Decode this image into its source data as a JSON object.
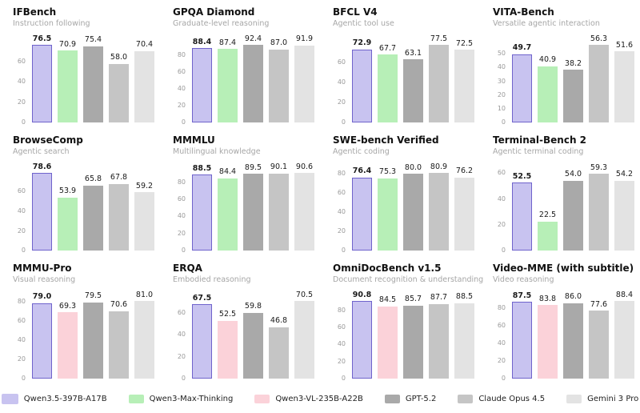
{
  "legend": {
    "items": [
      {
        "label": "Qwen3.5-397B-A17B",
        "fill": "#c8c3f0",
        "border": "#6f63cc",
        "emphasis": true
      },
      {
        "label": "Qwen3-Max-Thinking",
        "fill": "#b7efb7",
        "border": null,
        "emphasis": false
      },
      {
        "label": "Qwen3-VL-235B-A22B",
        "fill": "#fbd2d9",
        "border": null,
        "emphasis": false
      },
      {
        "label": "GPT-5.2",
        "fill": "#a9a9a9",
        "border": null,
        "emphasis": false
      },
      {
        "label": "Claude Opus 4.5",
        "fill": "#c5c5c5",
        "border": null,
        "emphasis": false
      },
      {
        "label": "Gemini 3 Pro",
        "fill": "#e3e3e3",
        "border": null,
        "emphasis": false
      }
    ]
  },
  "chart_data": [
    {
      "type": "bar",
      "title": "IFBench",
      "subtitle": "Instruction following",
      "yticks": [
        0,
        20,
        40,
        60
      ],
      "grid": false,
      "value_labels": true,
      "series": [
        {
          "name": "Qwen3.5-397B-A17B",
          "value": 76.5
        },
        {
          "name": "Qwen3-Max-Thinking",
          "value": 70.9
        },
        {
          "name": "GPT-5.2",
          "value": 75.4
        },
        {
          "name": "Claude Opus 4.5",
          "value": 58.0
        },
        {
          "name": "Gemini 3 Pro",
          "value": 70.4
        }
      ]
    },
    {
      "type": "bar",
      "title": "GPQA Diamond",
      "subtitle": "Graduate-level reasoning",
      "yticks": [
        0,
        20,
        40,
        60,
        80
      ],
      "grid": false,
      "value_labels": true,
      "series": [
        {
          "name": "Qwen3.5-397B-A17B",
          "value": 88.4
        },
        {
          "name": "Qwen3-Max-Thinking",
          "value": 87.4
        },
        {
          "name": "GPT-5.2",
          "value": 92.4
        },
        {
          "name": "Claude Opus 4.5",
          "value": 87.0
        },
        {
          "name": "Gemini 3 Pro",
          "value": 91.9
        }
      ]
    },
    {
      "type": "bar",
      "title": "BFCL V4",
      "subtitle": "Agentic tool use",
      "yticks": [
        0,
        20,
        40,
        60
      ],
      "grid": false,
      "value_labels": true,
      "series": [
        {
          "name": "Qwen3.5-397B-A17B",
          "value": 72.9
        },
        {
          "name": "Qwen3-Max-Thinking",
          "value": 67.7
        },
        {
          "name": "GPT-5.2",
          "value": 63.1
        },
        {
          "name": "Claude Opus 4.5",
          "value": 77.5
        },
        {
          "name": "Gemini 3 Pro",
          "value": 72.5
        }
      ]
    },
    {
      "type": "bar",
      "title": "VITA-Bench",
      "subtitle": "Versatile agentic interaction",
      "yticks": [
        0,
        10,
        20,
        30,
        40,
        50
      ],
      "grid": false,
      "value_labels": true,
      "series": [
        {
          "name": "Qwen3.5-397B-A17B",
          "value": 49.7
        },
        {
          "name": "Qwen3-Max-Thinking",
          "value": 40.9
        },
        {
          "name": "GPT-5.2",
          "value": 38.2
        },
        {
          "name": "Claude Opus 4.5",
          "value": 56.3
        },
        {
          "name": "Gemini 3 Pro",
          "value": 51.6
        }
      ]
    },
    {
      "type": "bar",
      "title": "BrowseComp",
      "subtitle": "Agentic search",
      "yticks": [
        0,
        20,
        40,
        60
      ],
      "grid": false,
      "value_labels": true,
      "series": [
        {
          "name": "Qwen3.5-397B-A17B",
          "value": 78.6
        },
        {
          "name": "Qwen3-Max-Thinking",
          "value": 53.9
        },
        {
          "name": "GPT-5.2",
          "value": 65.8
        },
        {
          "name": "Claude Opus 4.5",
          "value": 67.8
        },
        {
          "name": "Gemini 3 Pro",
          "value": 59.2
        }
      ]
    },
    {
      "type": "bar",
      "title": "MMMLU",
      "subtitle": "Multilingual knowledge",
      "yticks": [
        0,
        20,
        40,
        60,
        80
      ],
      "grid": false,
      "value_labels": true,
      "series": [
        {
          "name": "Qwen3.5-397B-A17B",
          "value": 88.5
        },
        {
          "name": "Qwen3-Max-Thinking",
          "value": 84.4
        },
        {
          "name": "GPT-5.2",
          "value": 89.5
        },
        {
          "name": "Claude Opus 4.5",
          "value": 90.1
        },
        {
          "name": "Gemini 3 Pro",
          "value": 90.6
        }
      ]
    },
    {
      "type": "bar",
      "title": "SWE-bench Verified",
      "subtitle": "Agentic coding",
      "yticks": [
        0,
        20,
        40,
        60,
        80
      ],
      "grid": false,
      "value_labels": true,
      "series": [
        {
          "name": "Qwen3.5-397B-A17B",
          "value": 76.4
        },
        {
          "name": "Qwen3-Max-Thinking",
          "value": 75.3
        },
        {
          "name": "GPT-5.2",
          "value": 80.0
        },
        {
          "name": "Claude Opus 4.5",
          "value": 80.9
        },
        {
          "name": "Gemini 3 Pro",
          "value": 76.2
        }
      ]
    },
    {
      "type": "bar",
      "title": "Terminal-Bench 2",
      "subtitle": "Agentic terminal coding",
      "yticks": [
        0,
        20,
        40,
        60
      ],
      "grid": false,
      "value_labels": true,
      "series": [
        {
          "name": "Qwen3.5-397B-A17B",
          "value": 52.5
        },
        {
          "name": "Qwen3-Max-Thinking",
          "value": 22.5
        },
        {
          "name": "GPT-5.2",
          "value": 54.0
        },
        {
          "name": "Claude Opus 4.5",
          "value": 59.3
        },
        {
          "name": "Gemini 3 Pro",
          "value": 54.2
        }
      ]
    },
    {
      "type": "bar",
      "title": "MMMU-Pro",
      "subtitle": "Visual reasoning",
      "yticks": [
        0,
        20,
        40,
        60,
        80
      ],
      "grid": false,
      "value_labels": true,
      "series": [
        {
          "name": "Qwen3.5-397B-A17B",
          "value": 79.0
        },
        {
          "name": "Qwen3-VL-235B-A22B",
          "value": 69.3
        },
        {
          "name": "GPT-5.2",
          "value": 79.5
        },
        {
          "name": "Claude Opus 4.5",
          "value": 70.6
        },
        {
          "name": "Gemini 3 Pro",
          "value": 81.0
        }
      ]
    },
    {
      "type": "bar",
      "title": "ERQA",
      "subtitle": "Embodied reasoning",
      "yticks": [
        0,
        20,
        40,
        60
      ],
      "grid": false,
      "value_labels": true,
      "series": [
        {
          "name": "Qwen3.5-397B-A17B",
          "value": 67.5
        },
        {
          "name": "Qwen3-VL-235B-A22B",
          "value": 52.5
        },
        {
          "name": "GPT-5.2",
          "value": 59.8
        },
        {
          "name": "Claude Opus 4.5",
          "value": 46.8
        },
        {
          "name": "Gemini 3 Pro",
          "value": 70.5
        }
      ]
    },
    {
      "type": "bar",
      "title": "OmniDocBench v1.5",
      "subtitle": "Document recognition & understanding",
      "yticks": [
        0,
        20,
        40,
        60,
        80
      ],
      "grid": false,
      "value_labels": true,
      "series": [
        {
          "name": "Qwen3.5-397B-A17B",
          "value": 90.8
        },
        {
          "name": "Qwen3-VL-235B-A22B",
          "value": 84.5
        },
        {
          "name": "GPT-5.2",
          "value": 85.7
        },
        {
          "name": "Claude Opus 4.5",
          "value": 87.7
        },
        {
          "name": "Gemini 3 Pro",
          "value": 88.5
        }
      ]
    },
    {
      "type": "bar",
      "title": "Video-MME (with subtitle)",
      "subtitle": "Video reasoning",
      "yticks": [
        0,
        20,
        40,
        60,
        80
      ],
      "grid": false,
      "value_labels": true,
      "series": [
        {
          "name": "Qwen3.5-397B-A17B",
          "value": 87.5
        },
        {
          "name": "Qwen3-VL-235B-A22B",
          "value": 83.8
        },
        {
          "name": "GPT-5.2",
          "value": 86.0
        },
        {
          "name": "Claude Opus 4.5",
          "value": 77.6
        },
        {
          "name": "Gemini 3 Pro",
          "value": 88.4
        }
      ]
    }
  ]
}
